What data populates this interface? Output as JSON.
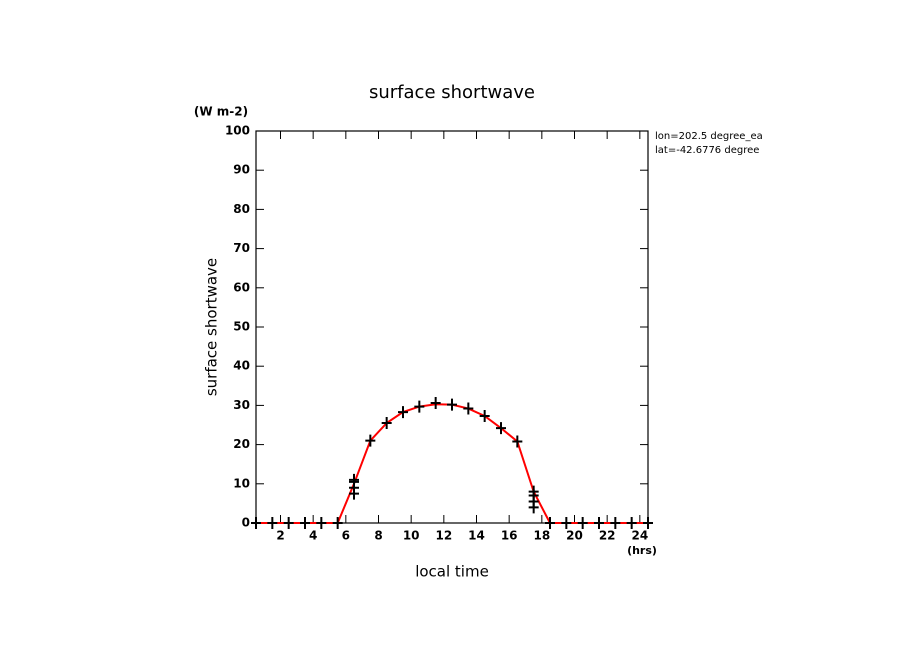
{
  "chart_data": {
    "type": "line",
    "title": "surface shortwave",
    "y_units": "(W m-2)",
    "y_label": "surface shortwave",
    "x_label": "local time",
    "x_units": "(hrs)",
    "annotations": [
      "lon=202.5 degree_ea",
      "lat=-42.6776 degree"
    ],
    "xlim": [
      0.5,
      24.5
    ],
    "ylim": [
      0,
      100
    ],
    "xticks": [
      2,
      4,
      6,
      8,
      10,
      12,
      14,
      16,
      18,
      20,
      22,
      24
    ],
    "yticks": [
      0,
      10,
      20,
      30,
      40,
      50,
      60,
      70,
      80,
      90,
      100
    ],
    "series": [
      {
        "style": "line",
        "color": "#ff0000",
        "x": [
          0.5,
          1.5,
          2.5,
          3.5,
          4.5,
          5.5,
          6.5,
          7.5,
          8.5,
          9.5,
          10.5,
          11.5,
          12.5,
          13.5,
          14.5,
          15.5,
          16.5,
          17.5,
          18.5,
          19.5,
          20.5,
          21.5,
          22.5,
          23.5,
          24.5
        ],
        "values": [
          0,
          0,
          0,
          0,
          0,
          0,
          10,
          21,
          25.5,
          28.3,
          29.7,
          30.3,
          30.2,
          29.2,
          27.3,
          24.2,
          20.8,
          8,
          0,
          0,
          0,
          0,
          0,
          0,
          0
        ]
      },
      {
        "style": "markers",
        "color": "#000000",
        "x": [
          0.5,
          1.5,
          2.5,
          3.5,
          4.5,
          5.5,
          6.5,
          6.5,
          6.5,
          6.5,
          7.5,
          8.5,
          9.5,
          10.5,
          11.5,
          12.5,
          13.5,
          14.5,
          15.5,
          16.5,
          17.5,
          17.5,
          17.5,
          17.5,
          18.5,
          19.5,
          20.5,
          21.5,
          22.5,
          23.5,
          24.5
        ],
        "values": [
          0,
          0,
          0,
          0,
          0,
          0,
          7.5,
          9,
          10.5,
          11,
          21,
          25.5,
          28.3,
          29.7,
          30.6,
          30.2,
          29.2,
          27.3,
          24.2,
          20.8,
          4,
          5.5,
          7,
          8,
          0,
          0,
          0,
          0,
          0,
          0,
          0
        ]
      }
    ]
  }
}
